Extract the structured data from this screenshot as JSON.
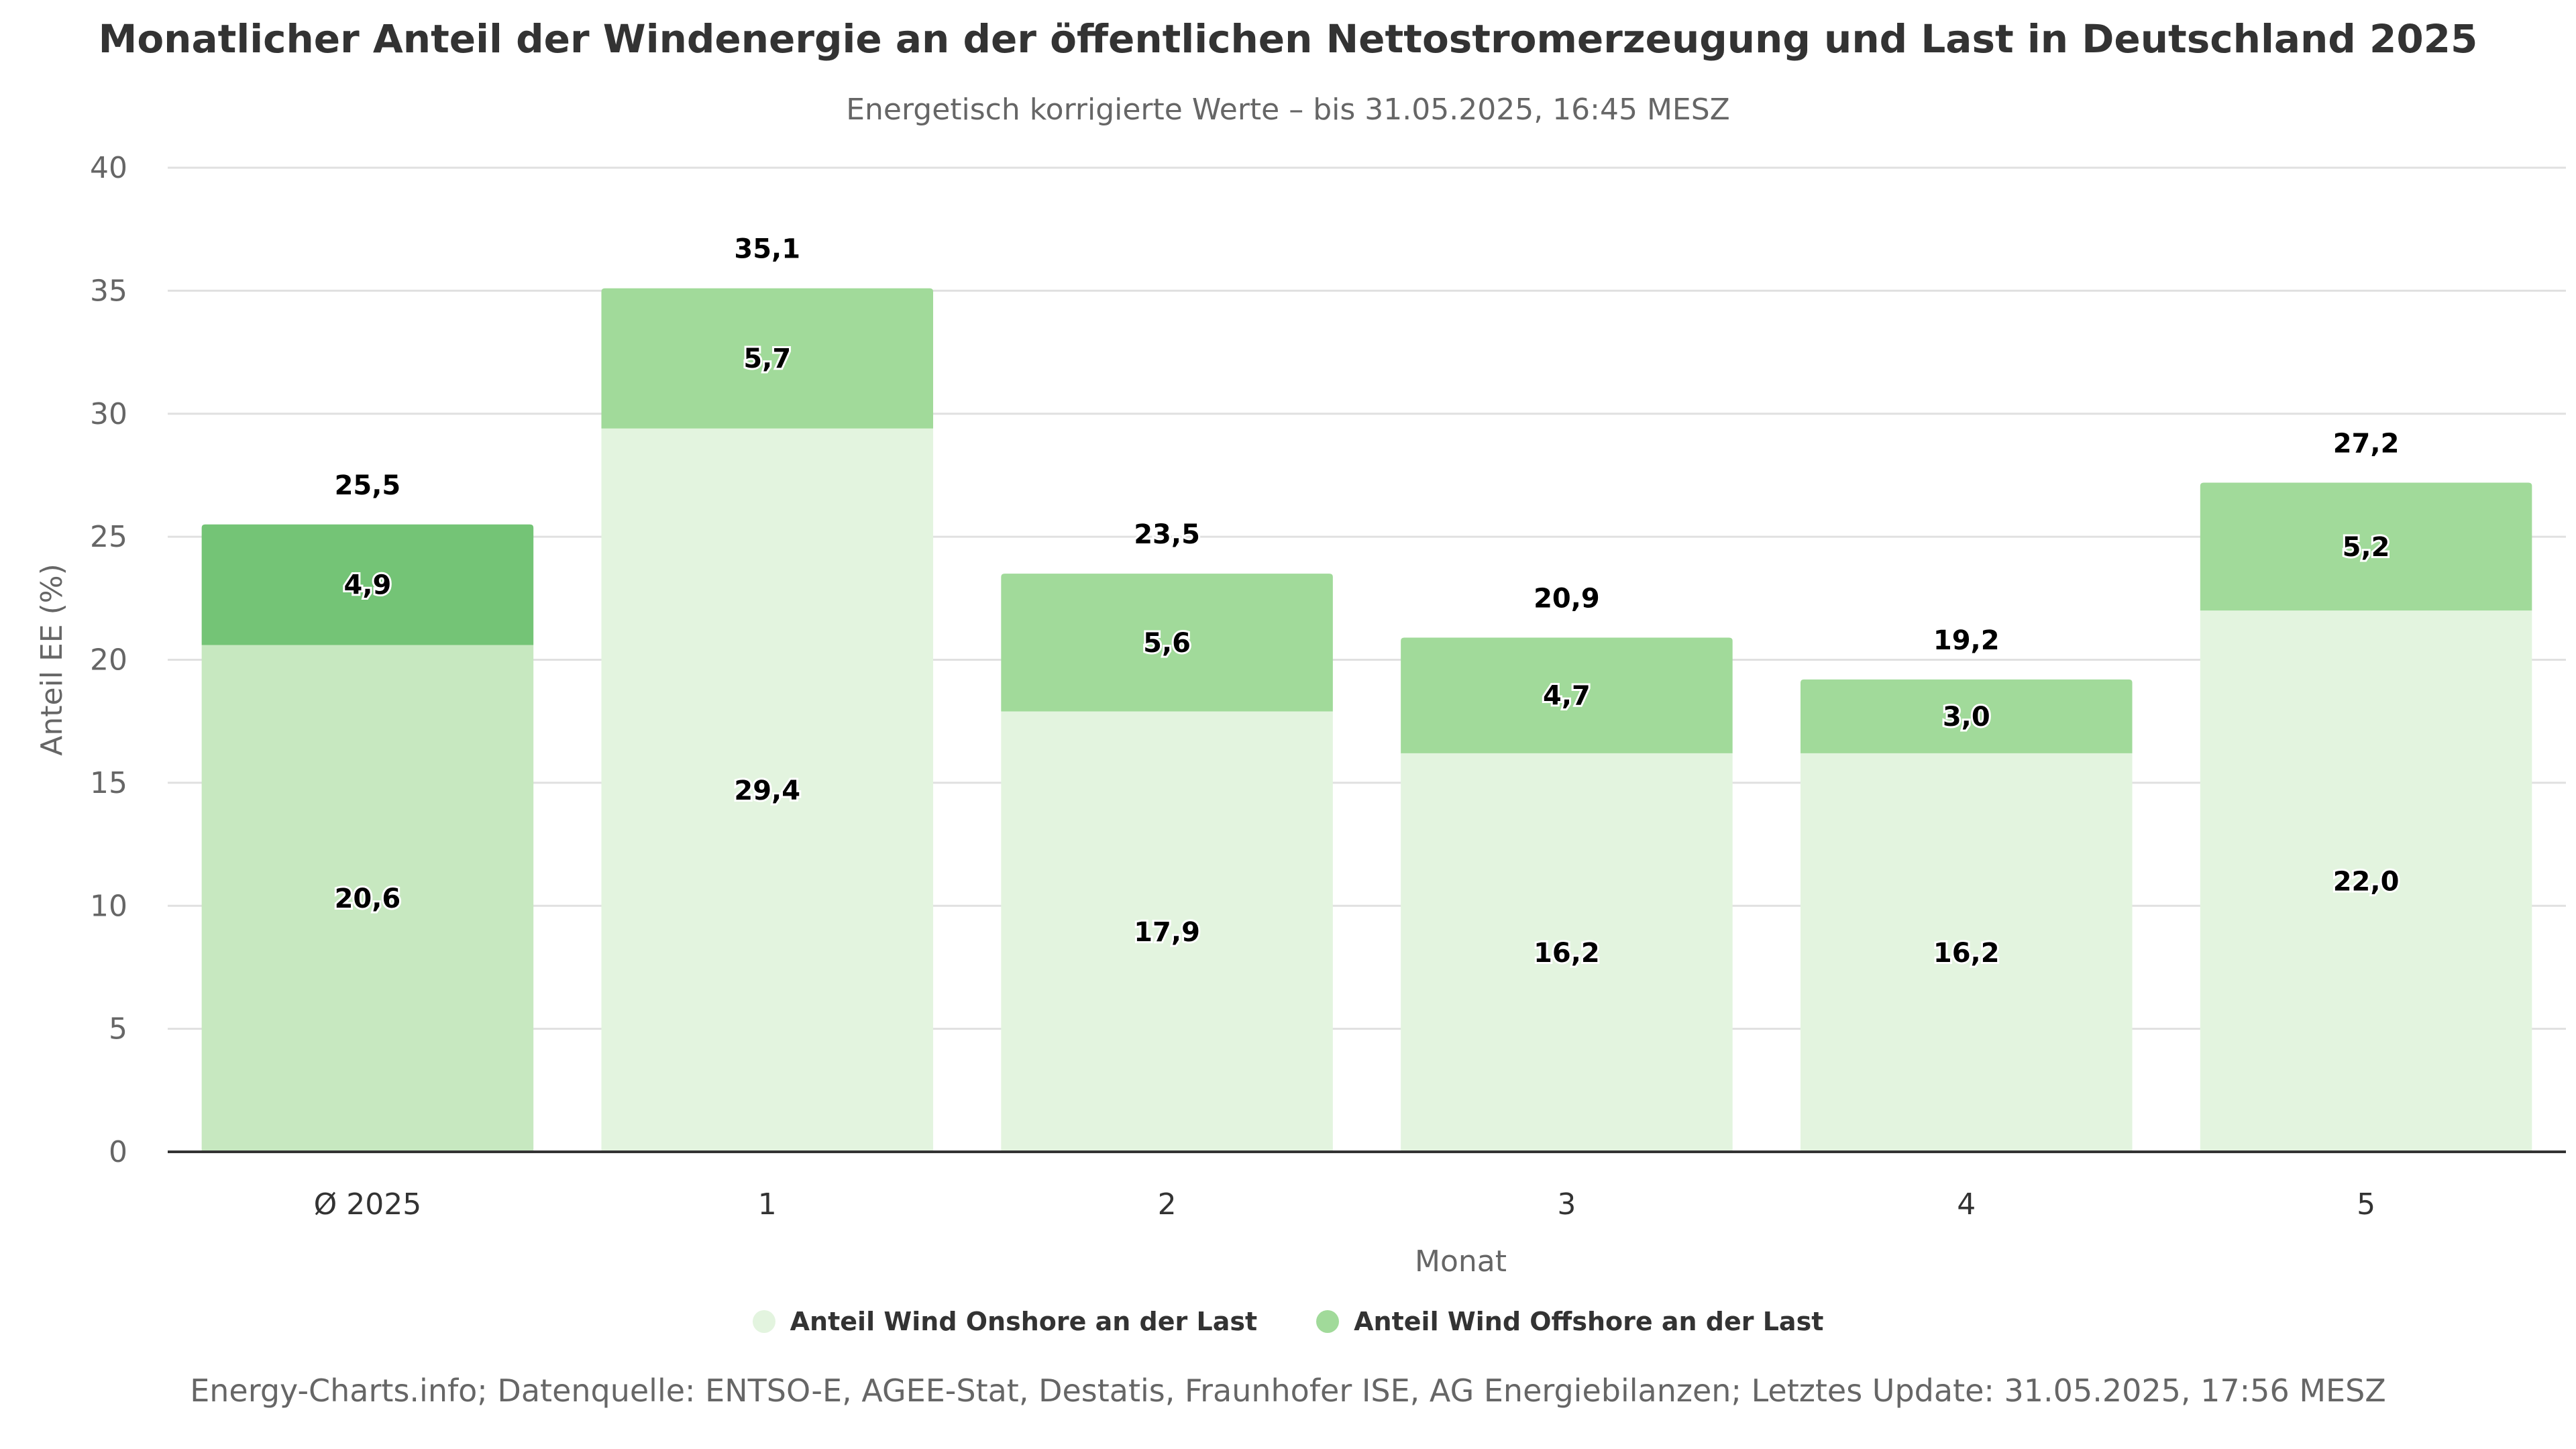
{
  "header": {
    "title": "Monatlicher Anteil der Windenergie an der öffentlichen Nettostromerzeugung und Last in Deutschland 2025",
    "subtitle": "Energetisch korrigierte Werte – bis 31.05.2025, 16:45 MESZ"
  },
  "legend": {
    "onshore_label": "Anteil Wind Onshore an der Last",
    "offshore_label": "Anteil Wind Offshore an der Last"
  },
  "footer": {
    "source": "Energy-Charts.info; Datenquelle: ENTSO-E, AGEE-Stat, Destatis, Fraunhofer ISE, AG Energiebilanzen; Letztes Update: 31.05.2025, 17:56 MESZ"
  },
  "colors": {
    "onshore": "#e3f4df",
    "offshore": "#a1da9a",
    "avg_onshore": "#c7e8c0",
    "avg_offshore": "#74c476",
    "grid": "#e0e0e0",
    "axis": "#333333"
  },
  "chart_data": {
    "type": "bar",
    "stacked": true,
    "categories": [
      "Ø 2025",
      "1",
      "2",
      "3",
      "4",
      "5"
    ],
    "series": [
      {
        "name": "Anteil Wind Onshore an der Last",
        "values": [
          20.6,
          29.4,
          17.9,
          16.2,
          16.2,
          22.0
        ],
        "labels": [
          "20,6",
          "29,4",
          "17,9",
          "16,2",
          "16,2",
          "22,0"
        ]
      },
      {
        "name": "Anteil Wind Offshore an der Last",
        "values": [
          4.9,
          5.7,
          5.6,
          4.7,
          3.0,
          5.2
        ],
        "labels": [
          "4,9",
          "5,7",
          "5,6",
          "4,7",
          "3,0",
          "5,2"
        ]
      }
    ],
    "totals": [
      25.5,
      35.1,
      23.5,
      20.9,
      19.2,
      27.2
    ],
    "total_labels": [
      "25,5",
      "35,1",
      "23,5",
      "20,9",
      "19,2",
      "27,2"
    ],
    "ylabel": "Anteil EE (%)",
    "xlabel": "Monat",
    "ylim": [
      0,
      40
    ],
    "yticks": [
      0,
      5,
      10,
      15,
      20,
      25,
      30,
      35,
      40
    ],
    "grid": true,
    "legend_position": "bottom-center"
  }
}
